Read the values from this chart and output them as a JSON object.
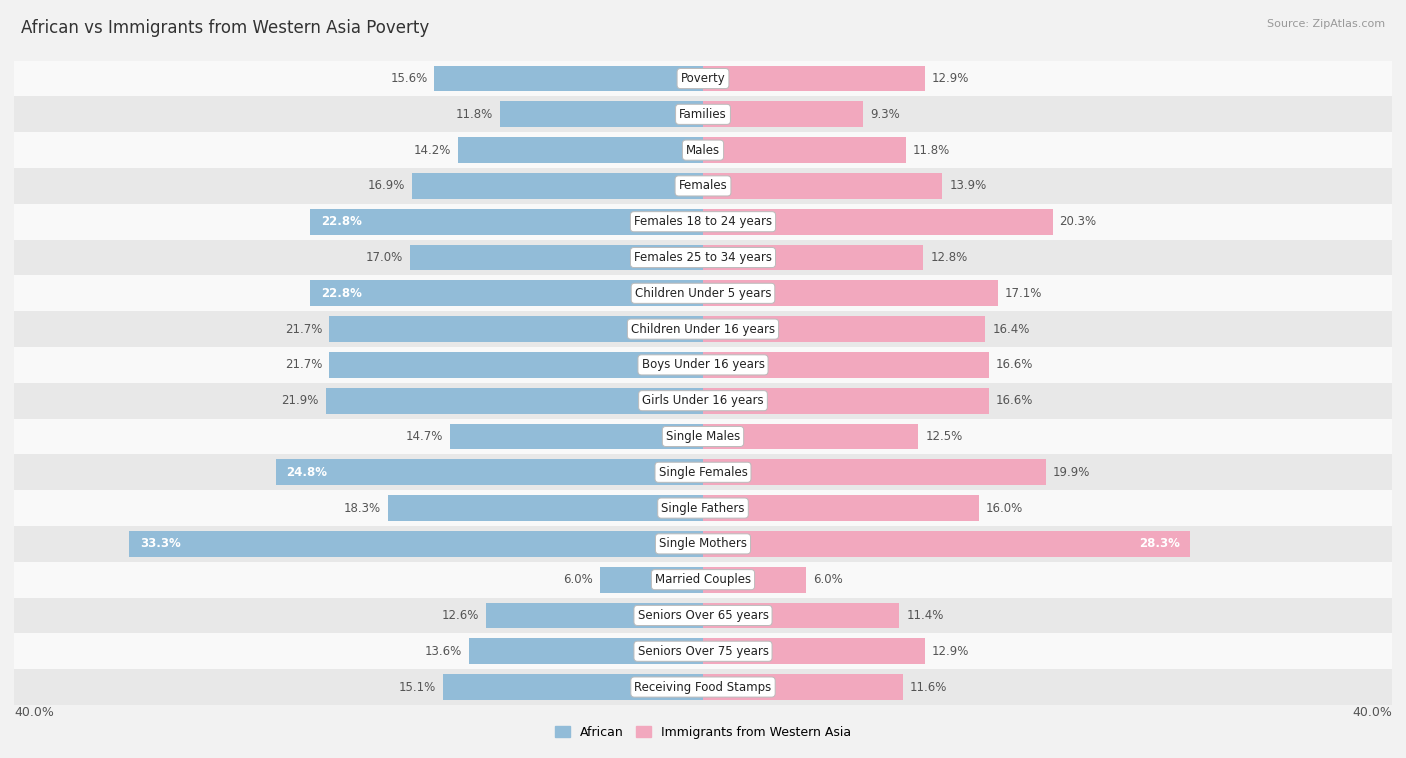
{
  "title": "African vs Immigrants from Western Asia Poverty",
  "source": "Source: ZipAtlas.com",
  "categories": [
    "Poverty",
    "Families",
    "Males",
    "Females",
    "Females 18 to 24 years",
    "Females 25 to 34 years",
    "Children Under 5 years",
    "Children Under 16 years",
    "Boys Under 16 years",
    "Girls Under 16 years",
    "Single Males",
    "Single Females",
    "Single Fathers",
    "Single Mothers",
    "Married Couples",
    "Seniors Over 65 years",
    "Seniors Over 75 years",
    "Receiving Food Stamps"
  ],
  "african": [
    15.6,
    11.8,
    14.2,
    16.9,
    22.8,
    17.0,
    22.8,
    21.7,
    21.7,
    21.9,
    14.7,
    24.8,
    18.3,
    33.3,
    6.0,
    12.6,
    13.6,
    15.1
  ],
  "western_asia": [
    12.9,
    9.3,
    11.8,
    13.9,
    20.3,
    12.8,
    17.1,
    16.4,
    16.6,
    16.6,
    12.5,
    19.9,
    16.0,
    28.3,
    6.0,
    11.4,
    12.9,
    11.6
  ],
  "african_color": "#92bcd8",
  "western_asia_color": "#f2a8be",
  "bar_height": 0.72,
  "xlim": 40.0,
  "background_color": "#f2f2f2",
  "row_bg_even": "#f9f9f9",
  "row_bg_odd": "#e8e8e8",
  "inside_threshold_afr": 22.0,
  "inside_threshold_wasi": 22.0,
  "value_color_inside": "#ffffff",
  "value_color_outside": "#555555",
  "legend_label_african": "African",
  "legend_label_wasi": "Immigrants from Western Asia"
}
